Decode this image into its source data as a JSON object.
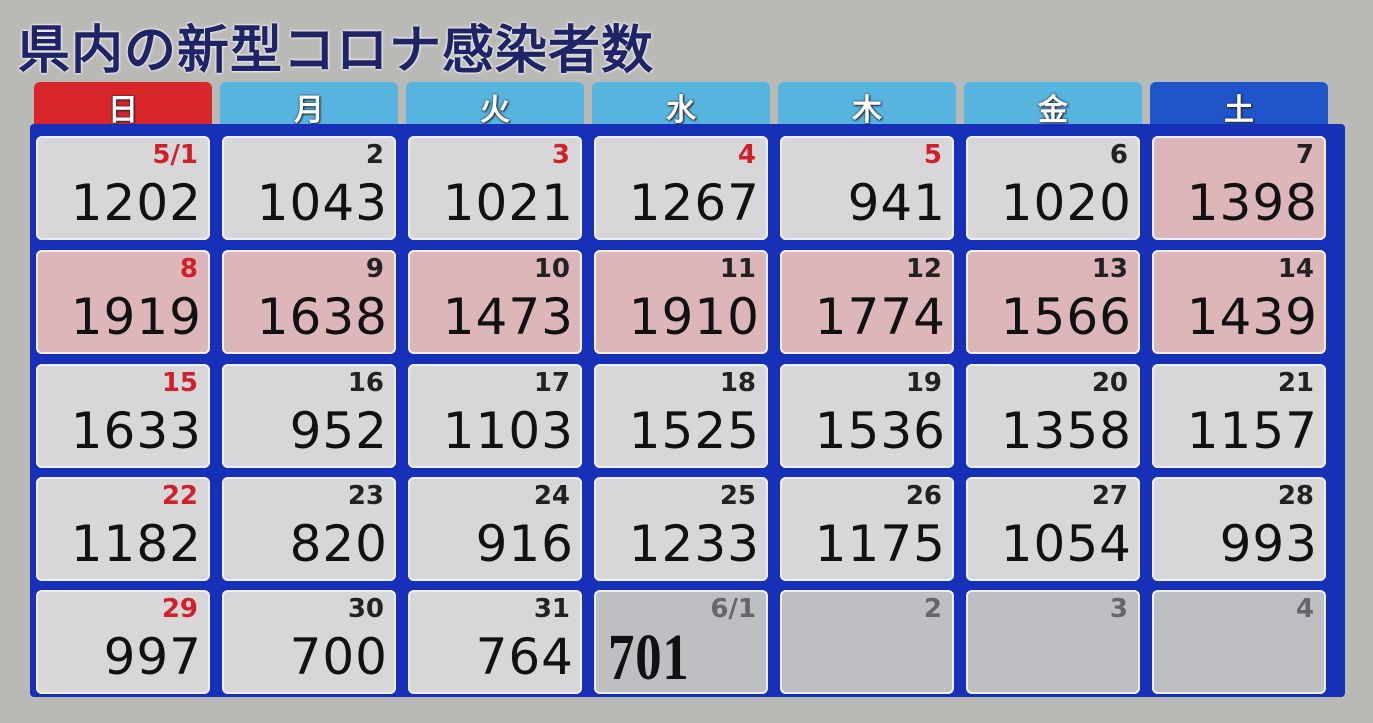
{
  "title": "県内の新型コロナ感染者数",
  "weekdays": [
    {
      "label": "日",
      "color": "#d8262a"
    },
    {
      "label": "月",
      "color": "#56b4de"
    },
    {
      "label": "火",
      "color": "#56b4de"
    },
    {
      "label": "水",
      "color": "#56b4de"
    },
    {
      "label": "木",
      "color": "#56b4de"
    },
    {
      "label": "金",
      "color": "#56b4de"
    },
    {
      "label": "土",
      "color": "#1f55c8"
    }
  ],
  "chart_data": {
    "type": "table",
    "title": "県内の新型コロナ感染者数",
    "columns": [
      "日",
      "月",
      "火",
      "水",
      "木",
      "金",
      "土"
    ],
    "rows": [
      [
        {
          "date": "5/1",
          "value": "1202",
          "red": true
        },
        {
          "date": "2",
          "value": "1043"
        },
        {
          "date": "3",
          "value": "1021",
          "red": true
        },
        {
          "date": "4",
          "value": "1267",
          "red": true
        },
        {
          "date": "5",
          "value": "941",
          "red": true
        },
        {
          "date": "6",
          "value": "1020"
        },
        {
          "date": "7",
          "value": "1398",
          "highlight": true
        }
      ],
      [
        {
          "date": "8",
          "value": "1919",
          "red": true,
          "highlight": true
        },
        {
          "date": "9",
          "value": "1638",
          "highlight": true
        },
        {
          "date": "10",
          "value": "1473",
          "highlight": true
        },
        {
          "date": "11",
          "value": "1910",
          "highlight": true
        },
        {
          "date": "12",
          "value": "1774",
          "highlight": true
        },
        {
          "date": "13",
          "value": "1566",
          "highlight": true
        },
        {
          "date": "14",
          "value": "1439",
          "highlight": true
        }
      ],
      [
        {
          "date": "15",
          "value": "1633",
          "red": true
        },
        {
          "date": "16",
          "value": "952"
        },
        {
          "date": "17",
          "value": "1103"
        },
        {
          "date": "18",
          "value": "1525"
        },
        {
          "date": "19",
          "value": "1536"
        },
        {
          "date": "20",
          "value": "1358"
        },
        {
          "date": "21",
          "value": "1157"
        }
      ],
      [
        {
          "date": "22",
          "value": "1182",
          "red": true
        },
        {
          "date": "23",
          "value": "820"
        },
        {
          "date": "24",
          "value": "916"
        },
        {
          "date": "25",
          "value": "1233"
        },
        {
          "date": "26",
          "value": "1175"
        },
        {
          "date": "27",
          "value": "1054"
        },
        {
          "date": "28",
          "value": "993"
        }
      ],
      [
        {
          "date": "29",
          "value": "997",
          "red": true
        },
        {
          "date": "30",
          "value": "700"
        },
        {
          "date": "31",
          "value": "764"
        },
        {
          "date": "6/1",
          "value": "701",
          "dim": true,
          "overlay": true
        },
        {
          "date": "2",
          "value": "",
          "dim": true
        },
        {
          "date": "3",
          "value": "",
          "dim": true
        },
        {
          "date": "4",
          "value": "",
          "dim": true
        }
      ]
    ]
  }
}
